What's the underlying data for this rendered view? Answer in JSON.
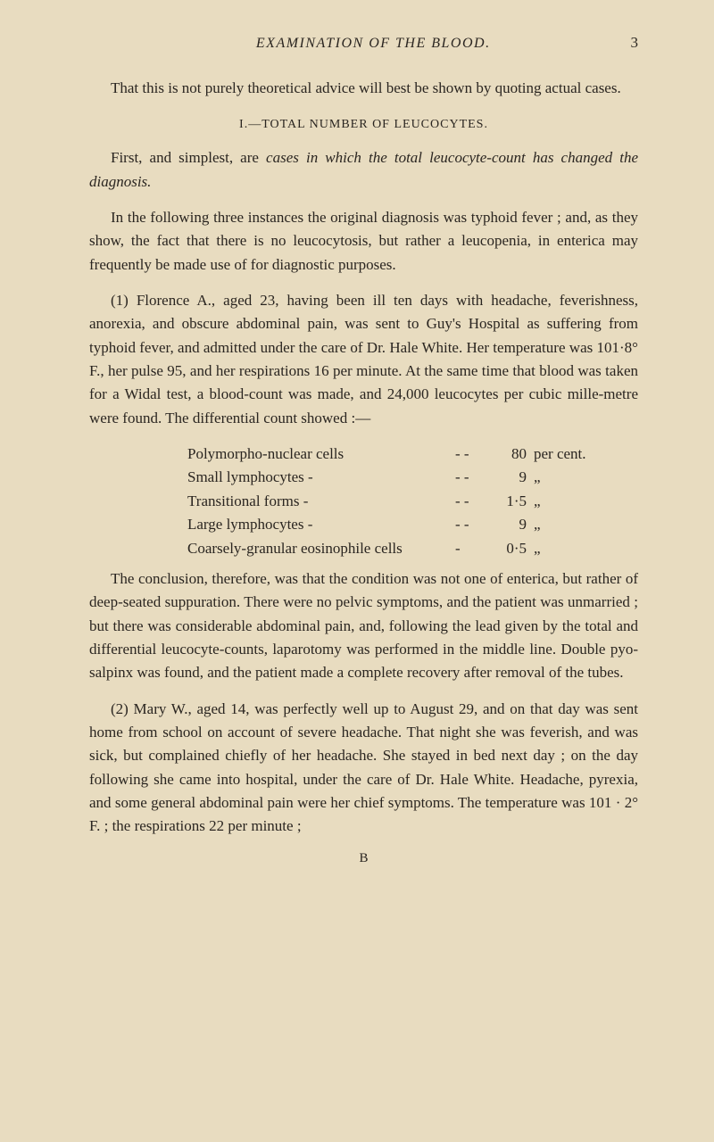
{
  "header": {
    "running_title": "EXAMINATION OF THE BLOOD.",
    "page_number": "3"
  },
  "para1": "That this is not purely theoretical advice will best be shown by quoting actual cases.",
  "section_heading": "I.—TOTAL NUMBER OF LEUCOCYTES.",
  "para2_a": "First, and simplest, are ",
  "para2_b": "cases in which the total leucocyte-count has changed the diagnosis.",
  "para3": "In the following three instances the original diagnosis was typhoid fever ; and, as they show, the fact that there is no leucocytosis, but rather a leucopenia, in enterica may frequently be made use of for diagnostic purposes.",
  "para4": "(1) Florence A., aged 23, having been ill ten days with headache, feverishness, anorexia, and obscure abdominal pain, was sent to Guy's Hospital as suffering from typhoid fever, and admitted under the care of Dr. Hale White. Her temperature was 101·8° F., her pulse 95, and her respirations 16 per minute. At the same time that blood was taken for a Widal test, a blood-count was made, and 24,000 leucocytes per cubic mille-metre were found. The differential count showed :—",
  "diff_count": {
    "rows": [
      {
        "label": "Polymorpho-nuclear cells",
        "sep": "-    -",
        "value": "80",
        "unit": "per cent."
      },
      {
        "label": "Small lymphocytes    -",
        "sep": "-    -",
        "value": "9",
        "unit": "„"
      },
      {
        "label": "Transitional forms      -",
        "sep": "-    -",
        "value": "1·5",
        "unit": "„"
      },
      {
        "label": "Large lymphocytes    -",
        "sep": "-    -",
        "value": "9",
        "unit": "„"
      },
      {
        "label": "Coarsely-granular eosinophile cells",
        "sep": "-",
        "value": "0·5",
        "unit": "„"
      }
    ]
  },
  "para5": "The conclusion, therefore, was that the condition was not one of enterica, but rather of deep-seated suppuration. There were no pelvic symptoms, and the patient was unmarried ; but there was considerable abdominal pain, and, following the lead given by the total and differential leucocyte-counts, laparotomy was performed in the middle line. Double pyo-salpinx was found, and the patient made a complete recovery after removal of the tubes.",
  "para6": "(2) Mary W., aged 14, was perfectly well up to August 29, and on that day was sent home from school on account of severe headache. That night she was feverish, and was sick, but complained chiefly of her headache. She stayed in bed next day ; on the day following she came into hospital, under the care of Dr. Hale White. Headache, pyrexia, and some general abdominal pain were her chief symptoms. The temperature was 101 · 2° F. ; the respirations 22 per minute ;",
  "sig": "B"
}
